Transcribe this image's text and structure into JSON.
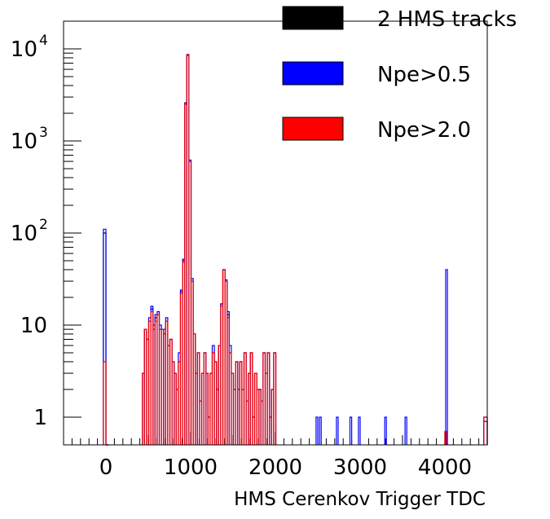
{
  "chart_data": {
    "type": "histogram",
    "xlabel": "HMS Cerenkov Trigger TDC",
    "ylabel": "",
    "xlim": [
      -500,
      4500
    ],
    "ylim": [
      0.5,
      20000
    ],
    "yscale": "log",
    "grid": false,
    "legend_position": "top-right",
    "x_ticks": [
      {
        "value": 0,
        "label": "0"
      },
      {
        "value": 1000,
        "label": "1000"
      },
      {
        "value": 2000,
        "label": "2000"
      },
      {
        "value": 3000,
        "label": "3000"
      },
      {
        "value": 4000,
        "label": "4000"
      }
    ],
    "y_ticks": [
      {
        "value": 1,
        "base": "1",
        "exp": ""
      },
      {
        "value": 10,
        "base": "10",
        "exp": ""
      },
      {
        "value": 100,
        "base": "10",
        "exp": "2"
      },
      {
        "value": 1000,
        "base": "10",
        "exp": "3"
      },
      {
        "value": 10000,
        "base": "10",
        "exp": "4"
      }
    ],
    "series": [
      {
        "name": "2 HMS tracks",
        "color": "#000000",
        "bins": [
          [
            -30,
            0,
            100
          ],
          [
            0,
            30,
            0
          ],
          [
            430,
            455,
            3
          ],
          [
            455,
            480,
            9
          ],
          [
            480,
            505,
            7
          ],
          [
            505,
            530,
            11
          ],
          [
            530,
            555,
            15
          ],
          [
            555,
            580,
            9
          ],
          [
            580,
            605,
            12
          ],
          [
            605,
            630,
            13
          ],
          [
            630,
            655,
            9
          ],
          [
            655,
            680,
            9
          ],
          [
            680,
            705,
            8
          ],
          [
            705,
            730,
            11
          ],
          [
            730,
            755,
            6
          ],
          [
            755,
            780,
            7
          ],
          [
            780,
            805,
            4
          ],
          [
            805,
            830,
            3
          ],
          [
            830,
            855,
            2
          ],
          [
            855,
            880,
            4
          ],
          [
            880,
            905,
            23
          ],
          [
            905,
            930,
            50
          ],
          [
            930,
            955,
            2500
          ],
          [
            955,
            980,
            8500
          ],
          [
            980,
            1005,
            600
          ],
          [
            1005,
            1030,
            30
          ],
          [
            1030,
            1055,
            8
          ],
          [
            1055,
            1080,
            3
          ],
          [
            1080,
            1105,
            5
          ],
          [
            1105,
            1130,
            1.5
          ],
          [
            1130,
            1155,
            3
          ],
          [
            1155,
            1180,
            5
          ],
          [
            1180,
            1205,
            3
          ],
          [
            1205,
            1230,
            1
          ],
          [
            1230,
            1255,
            3
          ],
          [
            1255,
            1280,
            5
          ],
          [
            1280,
            1305,
            4
          ],
          [
            1305,
            1330,
            2
          ],
          [
            1330,
            1355,
            6
          ],
          [
            1355,
            1380,
            17
          ],
          [
            1380,
            1405,
            40
          ],
          [
            1405,
            1430,
            30
          ],
          [
            1430,
            1455,
            13
          ],
          [
            1455,
            1480,
            5
          ],
          [
            1480,
            1505,
            3
          ],
          [
            1505,
            1530,
            2
          ],
          [
            1530,
            1555,
            4
          ],
          [
            1555,
            1580,
            2
          ],
          [
            1580,
            1605,
            4
          ],
          [
            1605,
            1630,
            2
          ],
          [
            1630,
            1655,
            5
          ],
          [
            1655,
            1680,
            1.5
          ],
          [
            1680,
            1705,
            3
          ],
          [
            1705,
            1730,
            5
          ],
          [
            1730,
            1755,
            1
          ],
          [
            1755,
            1780,
            3
          ],
          [
            1780,
            1805,
            2
          ],
          [
            1805,
            1830,
            2
          ],
          [
            1830,
            1855,
            1.5
          ],
          [
            1855,
            1880,
            5
          ],
          [
            1880,
            1905,
            3
          ],
          [
            1905,
            1930,
            5
          ],
          [
            1930,
            1955,
            1
          ],
          [
            1955,
            1980,
            2
          ],
          [
            1980,
            2005,
            5
          ],
          [
            4000,
            4020,
            0.7
          ],
          [
            4460,
            4500,
            0.9
          ]
        ]
      },
      {
        "name": "Npe>0.5",
        "color": "#0000ff",
        "bins": [
          [
            -30,
            0,
            110
          ],
          [
            0,
            30,
            0
          ],
          [
            430,
            455,
            3
          ],
          [
            455,
            480,
            9
          ],
          [
            480,
            505,
            7
          ],
          [
            505,
            530,
            12
          ],
          [
            530,
            555,
            16
          ],
          [
            555,
            580,
            10
          ],
          [
            580,
            605,
            13
          ],
          [
            605,
            630,
            14
          ],
          [
            630,
            655,
            10
          ],
          [
            655,
            680,
            9
          ],
          [
            680,
            705,
            9
          ],
          [
            705,
            730,
            12
          ],
          [
            730,
            755,
            6
          ],
          [
            755,
            780,
            7
          ],
          [
            780,
            805,
            4
          ],
          [
            805,
            830,
            3
          ],
          [
            830,
            855,
            2
          ],
          [
            855,
            880,
            5
          ],
          [
            880,
            905,
            24
          ],
          [
            905,
            930,
            52
          ],
          [
            930,
            955,
            2600
          ],
          [
            955,
            980,
            8700
          ],
          [
            980,
            1005,
            620
          ],
          [
            1005,
            1030,
            32
          ],
          [
            1030,
            1055,
            8
          ],
          [
            1055,
            1080,
            3
          ],
          [
            1080,
            1105,
            5
          ],
          [
            1105,
            1130,
            1.5
          ],
          [
            1130,
            1155,
            3
          ],
          [
            1155,
            1180,
            5
          ],
          [
            1180,
            1205,
            3
          ],
          [
            1205,
            1230,
            1
          ],
          [
            1230,
            1255,
            3
          ],
          [
            1255,
            1280,
            6
          ],
          [
            1280,
            1305,
            4
          ],
          [
            1305,
            1330,
            2
          ],
          [
            1330,
            1355,
            6
          ],
          [
            1355,
            1380,
            17
          ],
          [
            1380,
            1405,
            40
          ],
          [
            1405,
            1430,
            31
          ],
          [
            1430,
            1455,
            14
          ],
          [
            1455,
            1480,
            6
          ],
          [
            1480,
            1505,
            3
          ],
          [
            1505,
            1530,
            2
          ],
          [
            1530,
            1555,
            4
          ],
          [
            1555,
            1580,
            2
          ],
          [
            1580,
            1605,
            4
          ],
          [
            1605,
            1630,
            2
          ],
          [
            1630,
            1655,
            5
          ],
          [
            1655,
            1680,
            1.5
          ],
          [
            1680,
            1705,
            3
          ],
          [
            1705,
            1730,
            5
          ],
          [
            1730,
            1755,
            1
          ],
          [
            1755,
            1780,
            3
          ],
          [
            1780,
            1805,
            2
          ],
          [
            1805,
            1830,
            2
          ],
          [
            1830,
            1855,
            1.5
          ],
          [
            1855,
            1880,
            5
          ],
          [
            1880,
            1905,
            3
          ],
          [
            1905,
            1930,
            5
          ],
          [
            1930,
            1955,
            1
          ],
          [
            1955,
            1980,
            2
          ],
          [
            1980,
            2005,
            5
          ],
          [
            2480,
            2500,
            1
          ],
          [
            2520,
            2540,
            1
          ],
          [
            2720,
            2740,
            1
          ],
          [
            2880,
            2900,
            1
          ],
          [
            2980,
            3000,
            1
          ],
          [
            3290,
            3310,
            1
          ],
          [
            3530,
            3550,
            1
          ],
          [
            4010,
            4030,
            40
          ],
          [
            4460,
            4500,
            1
          ]
        ]
      },
      {
        "name": "Npe>2.0",
        "color": "#ff0000",
        "bins": [
          [
            -30,
            0,
            4
          ],
          [
            0,
            30,
            0
          ],
          [
            430,
            455,
            3
          ],
          [
            455,
            480,
            9
          ],
          [
            480,
            505,
            7
          ],
          [
            505,
            530,
            11
          ],
          [
            530,
            555,
            14
          ],
          [
            555,
            580,
            9
          ],
          [
            580,
            605,
            11
          ],
          [
            605,
            630,
            13
          ],
          [
            630,
            655,
            9
          ],
          [
            655,
            680,
            9
          ],
          [
            680,
            705,
            8
          ],
          [
            705,
            730,
            11
          ],
          [
            730,
            755,
            6
          ],
          [
            755,
            780,
            7
          ],
          [
            780,
            805,
            4
          ],
          [
            805,
            830,
            3
          ],
          [
            830,
            855,
            2
          ],
          [
            855,
            880,
            4
          ],
          [
            880,
            905,
            22
          ],
          [
            905,
            930,
            48
          ],
          [
            930,
            955,
            2500
          ],
          [
            955,
            980,
            8600
          ],
          [
            980,
            1005,
            600
          ],
          [
            1005,
            1030,
            30
          ],
          [
            1030,
            1055,
            8
          ],
          [
            1055,
            1080,
            3
          ],
          [
            1080,
            1105,
            5
          ],
          [
            1105,
            1130,
            1.5
          ],
          [
            1130,
            1155,
            3
          ],
          [
            1155,
            1180,
            5
          ],
          [
            1180,
            1205,
            3
          ],
          [
            1205,
            1230,
            1
          ],
          [
            1230,
            1255,
            3
          ],
          [
            1255,
            1280,
            5
          ],
          [
            1280,
            1305,
            4
          ],
          [
            1305,
            1330,
            2
          ],
          [
            1330,
            1355,
            6
          ],
          [
            1355,
            1380,
            16
          ],
          [
            1380,
            1405,
            40
          ],
          [
            1405,
            1430,
            30
          ],
          [
            1430,
            1455,
            12
          ],
          [
            1455,
            1480,
            5
          ],
          [
            1480,
            1505,
            3
          ],
          [
            1505,
            1530,
            2
          ],
          [
            1530,
            1555,
            4
          ],
          [
            1555,
            1580,
            2
          ],
          [
            1580,
            1605,
            4
          ],
          [
            1605,
            1630,
            2
          ],
          [
            1630,
            1655,
            5
          ],
          [
            1655,
            1680,
            1.5
          ],
          [
            1680,
            1705,
            3
          ],
          [
            1705,
            1730,
            5
          ],
          [
            1730,
            1755,
            1
          ],
          [
            1755,
            1780,
            3
          ],
          [
            1780,
            1805,
            2
          ],
          [
            1805,
            1830,
            2
          ],
          [
            1830,
            1855,
            1.5
          ],
          [
            1855,
            1880,
            5
          ],
          [
            1880,
            1905,
            3
          ],
          [
            1905,
            1930,
            5
          ],
          [
            1930,
            1955,
            1
          ],
          [
            1955,
            1980,
            2
          ],
          [
            1980,
            2005,
            5
          ],
          [
            4000,
            4020,
            0.7
          ],
          [
            4460,
            4500,
            1
          ]
        ]
      }
    ]
  }
}
